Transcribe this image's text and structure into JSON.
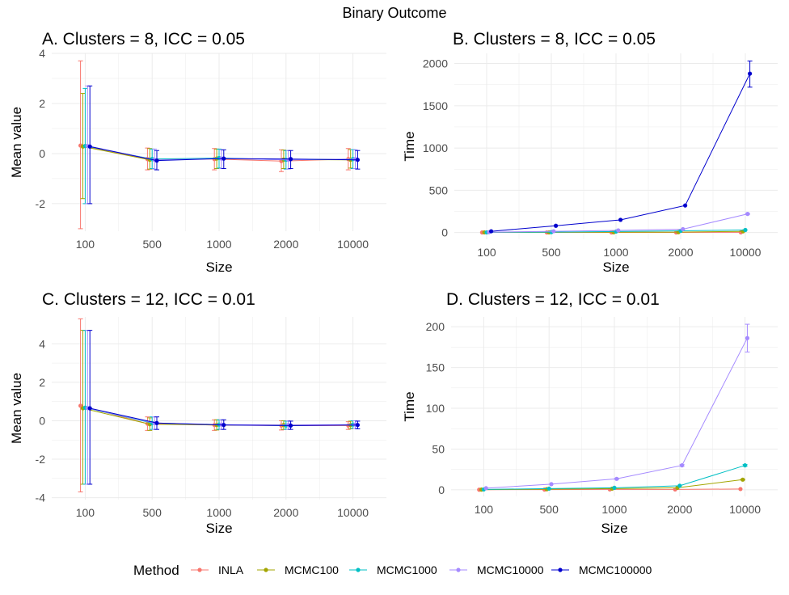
{
  "figure_title": "Binary Outcome",
  "legend": {
    "title": "Method",
    "items": [
      "INLA",
      "MCMC100",
      "MCMC1000",
      "MCMC10000",
      "MCMC100000"
    ]
  },
  "colors": {
    "INLA": "#F8766D",
    "MCMC100": "#A3A500",
    "MCMC1000": "#00BFC4",
    "MCMC10000": "#A58AFF",
    "MCMC100000": "#0000CD",
    "grid": "#EBEBEB"
  },
  "chart_data": [
    {
      "id": "A",
      "type": "line",
      "title": "A. Clusters = 8, ICC = 0.05",
      "xlabel": "Size",
      "ylabel": "Mean value",
      "categories": [
        "100",
        "500",
        "1000",
        "2000",
        "10000"
      ],
      "ylim": [
        -3.1,
        4.0
      ],
      "yticks": [
        -2,
        0,
        2,
        4
      ],
      "series": [
        {
          "name": "INLA",
          "values": [
            0.32,
            -0.22,
            -0.22,
            -0.3,
            -0.22
          ],
          "lower": [
            -3.0,
            -0.65,
            -0.65,
            -0.72,
            -0.65
          ],
          "upper": [
            3.7,
            0.22,
            0.2,
            0.15,
            0.2
          ]
        },
        {
          "name": "MCMC100",
          "values": [
            0.28,
            -0.25,
            -0.2,
            -0.24,
            -0.25
          ],
          "lower": [
            -1.8,
            -0.62,
            -0.6,
            -0.6,
            -0.58
          ],
          "upper": [
            2.4,
            0.2,
            0.18,
            0.14,
            0.16
          ]
        },
        {
          "name": "MCMC1000",
          "values": [
            0.3,
            -0.22,
            -0.18,
            -0.25,
            -0.22
          ],
          "lower": [
            -2.0,
            -0.6,
            -0.58,
            -0.62,
            -0.6
          ],
          "upper": [
            2.6,
            0.18,
            0.18,
            0.12,
            0.16
          ]
        },
        {
          "name": "MCMC10000",
          "values": [
            0.3,
            -0.25,
            -0.2,
            -0.25,
            -0.22
          ],
          "lower": [
            -2.0,
            -0.62,
            -0.6,
            -0.62,
            -0.6
          ],
          "upper": [
            2.7,
            0.18,
            0.15,
            0.12,
            0.15
          ]
        },
        {
          "name": "MCMC100000",
          "values": [
            0.28,
            -0.28,
            -0.2,
            -0.22,
            -0.25
          ],
          "lower": [
            -2.0,
            -0.65,
            -0.6,
            -0.6,
            -0.62
          ],
          "upper": [
            2.7,
            0.12,
            0.15,
            0.12,
            0.12
          ]
        }
      ]
    },
    {
      "id": "B",
      "type": "line",
      "title": "B. Clusters = 8, ICC = 0.05",
      "xlabel": "Size",
      "ylabel": "Time",
      "categories": [
        "100",
        "500",
        "1000",
        "2000",
        "10000"
      ],
      "ylim": [
        -80,
        2120
      ],
      "yticks": [
        0,
        500,
        1000,
        1500,
        2000
      ],
      "series": [
        {
          "name": "INLA",
          "values": [
            1,
            1,
            1,
            1,
            2
          ],
          "lower": [
            1,
            1,
            1,
            1,
            2
          ],
          "upper": [
            1,
            1,
            1,
            1,
            2
          ]
        },
        {
          "name": "MCMC100",
          "values": [
            2,
            2,
            3,
            5,
            14
          ],
          "lower": [
            2,
            2,
            3,
            5,
            14
          ],
          "upper": [
            2,
            2,
            3,
            5,
            14
          ]
        },
        {
          "name": "MCMC1000",
          "values": [
            2,
            5,
            12,
            20,
            30
          ],
          "lower": [
            2,
            5,
            12,
            20,
            30
          ],
          "upper": [
            2,
            5,
            12,
            20,
            30
          ]
        },
        {
          "name": "MCMC10000",
          "values": [
            4,
            15,
            25,
            40,
            220
          ],
          "lower": [
            4,
            15,
            25,
            40,
            215
          ],
          "upper": [
            4,
            15,
            25,
            40,
            225
          ]
        },
        {
          "name": "MCMC100000",
          "values": [
            15,
            80,
            150,
            320,
            1880
          ],
          "lower": [
            15,
            80,
            150,
            320,
            1720
          ],
          "upper": [
            15,
            80,
            150,
            320,
            2030
          ]
        }
      ]
    },
    {
      "id": "C",
      "type": "line",
      "title": "C. Clusters = 12, ICC = 0.01",
      "xlabel": "Size",
      "ylabel": "Mean value",
      "categories": [
        "100",
        "500",
        "1000",
        "2000",
        "10000"
      ],
      "ylim": [
        -4.1,
        5.4
      ],
      "yticks": [
        -4,
        -2,
        0,
        2,
        4
      ],
      "series": [
        {
          "name": "INLA",
          "values": [
            0.78,
            -0.15,
            -0.22,
            -0.25,
            -0.25
          ],
          "lower": [
            -3.7,
            -0.5,
            -0.5,
            -0.48,
            -0.45
          ],
          "upper": [
            5.3,
            0.2,
            0.05,
            0.0,
            -0.05
          ]
        },
        {
          "name": "MCMC100",
          "values": [
            0.65,
            -0.18,
            -0.22,
            -0.22,
            -0.22
          ],
          "lower": [
            -3.3,
            -0.5,
            -0.48,
            -0.45,
            -0.42
          ],
          "upper": [
            4.7,
            0.15,
            0.05,
            0.0,
            -0.02
          ]
        },
        {
          "name": "MCMC1000",
          "values": [
            0.68,
            -0.12,
            -0.2,
            -0.25,
            -0.2
          ],
          "lower": [
            -3.3,
            -0.45,
            -0.45,
            -0.45,
            -0.4
          ],
          "upper": [
            4.7,
            0.2,
            0.05,
            -0.02,
            0.0
          ]
        },
        {
          "name": "MCMC10000",
          "values": [
            0.66,
            -0.12,
            -0.2,
            -0.22,
            -0.2
          ],
          "lower": [
            -3.3,
            -0.45,
            -0.45,
            -0.45,
            -0.4
          ],
          "upper": [
            4.7,
            0.2,
            0.05,
            0.0,
            0.0
          ]
        },
        {
          "name": "MCMC100000",
          "values": [
            0.65,
            -0.12,
            -0.22,
            -0.25,
            -0.22
          ],
          "lower": [
            -3.3,
            -0.45,
            -0.45,
            -0.45,
            -0.42
          ],
          "upper": [
            4.7,
            0.2,
            0.05,
            -0.02,
            -0.02
          ]
        }
      ]
    },
    {
      "id": "D",
      "type": "line",
      "title": "D. Clusters = 12, ICC = 0.01",
      "xlabel": "Size",
      "ylabel": "Time",
      "categories": [
        "100",
        "500",
        "1000",
        "2000",
        "10000"
      ],
      "ylim": [
        -8,
        212
      ],
      "yticks": [
        0,
        50,
        100,
        150,
        200
      ],
      "series": [
        {
          "name": "INLA",
          "values": [
            0.2,
            0.3,
            0.5,
            0.5,
            1.0
          ],
          "lower": [
            0.2,
            0.3,
            0.5,
            0.5,
            1.0
          ],
          "upper": [
            0.2,
            0.3,
            0.5,
            0.5,
            1.0
          ]
        },
        {
          "name": "MCMC100",
          "values": [
            0.3,
            0.8,
            1.5,
            2.5,
            12.5
          ],
          "lower": [
            0.3,
            0.8,
            1.5,
            2.5,
            12.0
          ],
          "upper": [
            0.3,
            0.8,
            1.5,
            2.5,
            13.0
          ]
        },
        {
          "name": "MCMC1000",
          "values": [
            0.5,
            1.5,
            2.5,
            5.0,
            30.0
          ],
          "lower": [
            0.5,
            1.5,
            2.5,
            5.0,
            29.0
          ],
          "upper": [
            0.5,
            1.5,
            2.5,
            5.0,
            31.0
          ]
        },
        {
          "name": "MCMC10000",
          "values": [
            2.0,
            7.0,
            13.5,
            30.0,
            186.0
          ],
          "lower": [
            2.0,
            7.0,
            13.0,
            29.0,
            169.0
          ],
          "upper": [
            2.0,
            7.0,
            14.0,
            31.0,
            203.0
          ]
        },
        {
          "name": "MCMC100000",
          "values": [
            null,
            null,
            null,
            null,
            null
          ],
          "lower": [
            null,
            null,
            null,
            null,
            null
          ],
          "upper": [
            null,
            null,
            null,
            null,
            null
          ]
        }
      ]
    }
  ]
}
